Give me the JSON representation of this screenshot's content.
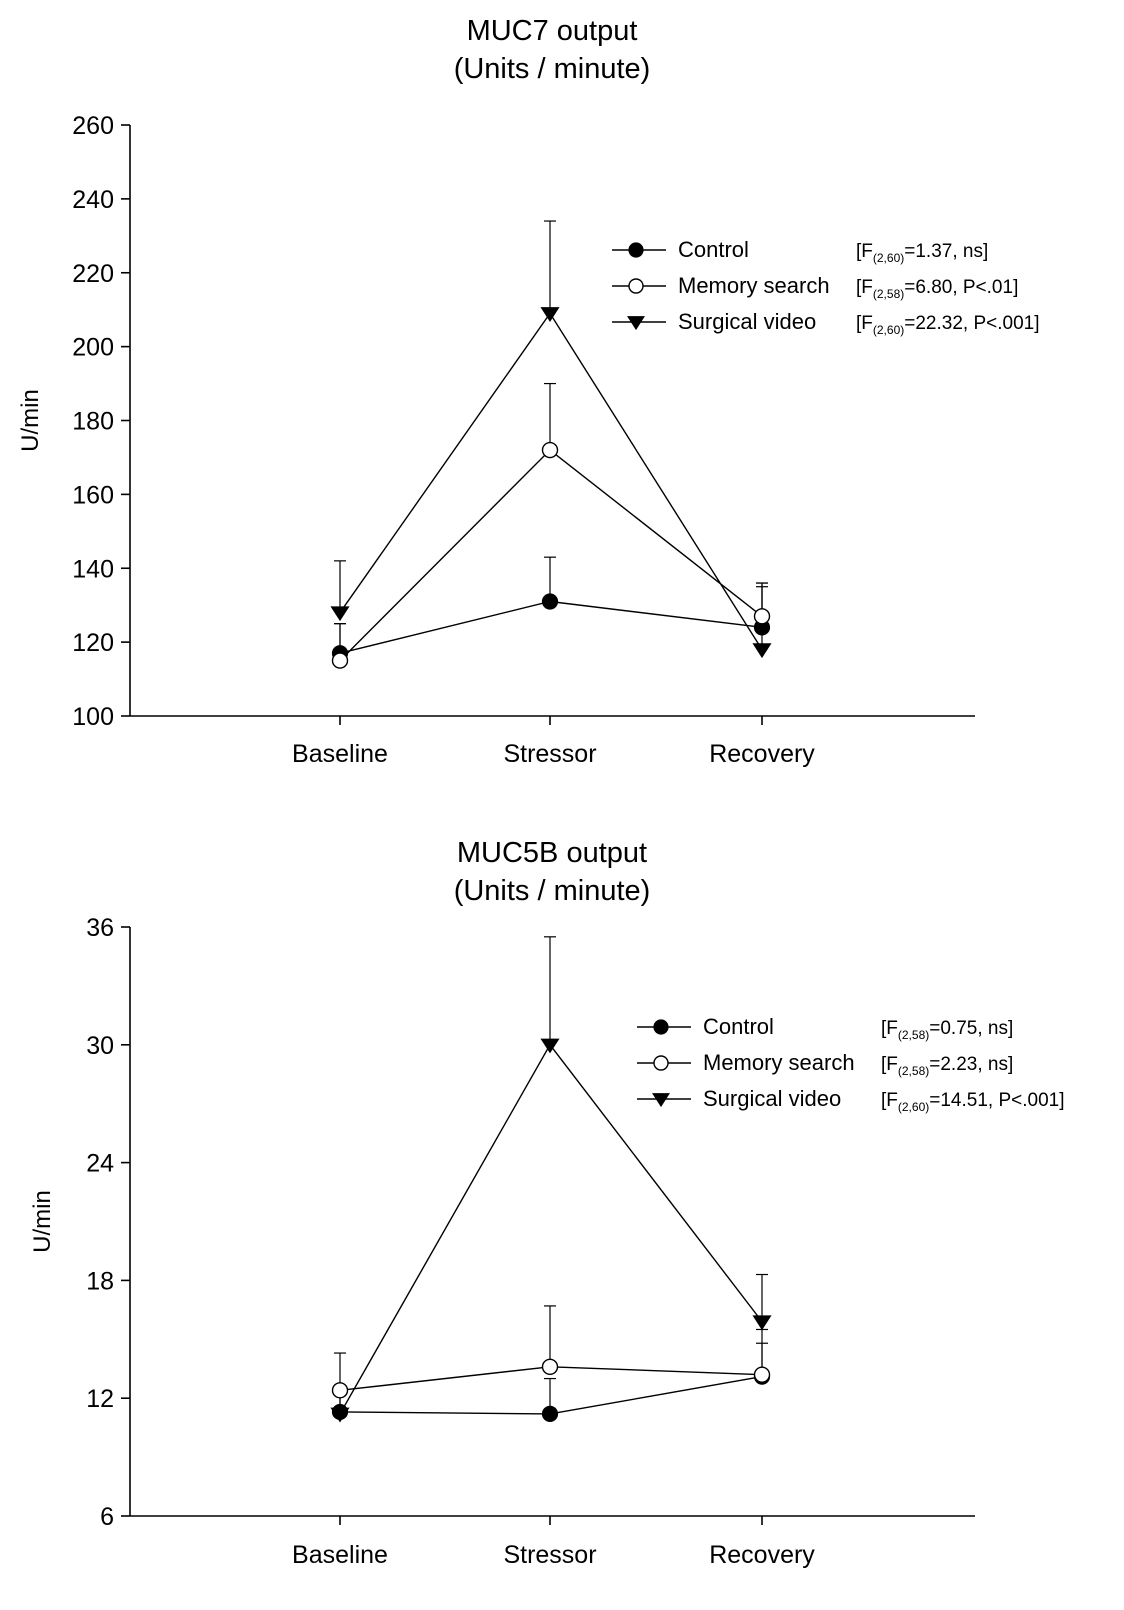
{
  "chart_data": [
    {
      "type": "line",
      "title": [
        "MUC7 output",
        "(Units / minute)"
      ],
      "ylabel": "U/min",
      "xlabel": "",
      "categories": [
        "Baseline",
        "Stressor",
        "Recovery"
      ],
      "ylim": [
        100,
        260
      ],
      "yticks": [
        100,
        120,
        140,
        160,
        180,
        200,
        220,
        240,
        260
      ],
      "legend_position": "top-right",
      "grid": false,
      "series": [
        {
          "name": "Control",
          "marker": "filled-circle",
          "values": [
            117,
            131,
            124
          ],
          "error_upper": [
            125,
            143,
            136
          ],
          "stat": {
            "pre": "[F",
            "sub": "(2,60)",
            "post": "=1.37, ns]"
          }
        },
        {
          "name": "Memory search",
          "marker": "open-circle",
          "values": [
            115,
            172,
            127
          ],
          "error_upper": [
            125,
            190,
            136
          ],
          "stat": {
            "pre": "[F",
            "sub": "(2,58)",
            "post": "=6.80, P<.01]"
          }
        },
        {
          "name": "Surgical video",
          "marker": "filled-triangle-down",
          "values": [
            128,
            209,
            118
          ],
          "error_upper": [
            142,
            234,
            135
          ],
          "stat": {
            "pre": "[F",
            "sub": "(2,60)",
            "post": "=22.32, P<.001]"
          }
        }
      ]
    },
    {
      "type": "line",
      "title": [
        "MUC5B output",
        "(Units / minute)"
      ],
      "ylabel": "U/min",
      "xlabel": "",
      "categories": [
        "Baseline",
        "Stressor",
        "Recovery"
      ],
      "ylim": [
        6,
        36
      ],
      "yticks": [
        6,
        12,
        18,
        24,
        30,
        36
      ],
      "legend_position": "top-right",
      "grid": false,
      "series": [
        {
          "name": "Control",
          "marker": "filled-circle",
          "values": [
            11.3,
            11.2,
            13.1
          ],
          "error_upper": [
            12.6,
            13.0,
            14.8
          ],
          "stat": {
            "pre": "[F",
            "sub": "(2,58)",
            "post": "=0.75, ns]"
          }
        },
        {
          "name": "Memory search",
          "marker": "open-circle",
          "values": [
            12.4,
            13.6,
            13.2
          ],
          "error_upper": [
            14.3,
            16.7,
            15.5
          ],
          "stat": {
            "pre": "[F",
            "sub": "(2,58)",
            "post": "=2.23, ns]"
          }
        },
        {
          "name": "Surgical video",
          "marker": "filled-triangle-down",
          "values": [
            11.2,
            30.0,
            15.9
          ],
          "error_upper": [
            12.5,
            35.5,
            18.3
          ],
          "stat": {
            "pre": "[F",
            "sub": "(2,60)",
            "post": "=14.51, P<.001]"
          }
        }
      ]
    }
  ]
}
